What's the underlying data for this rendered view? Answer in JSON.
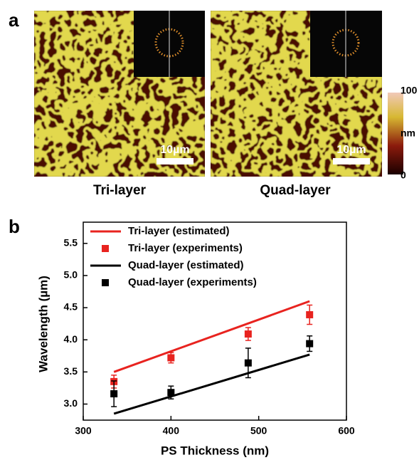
{
  "panel_a": {
    "label": "a",
    "captions": [
      "Tri-layer",
      "Quad-layer"
    ],
    "scale_bars": [
      "10µm",
      "10µm"
    ],
    "colorbar": {
      "top": "100",
      "unit": "nm",
      "bottom": "0"
    }
  },
  "chart_data": {
    "type": "line",
    "label": "b",
    "xlabel": "PS Thickness (nm)",
    "ylabel": "Wavelength (µm)",
    "xlim": [
      300,
      600
    ],
    "xticks": [
      300,
      400,
      500,
      600
    ],
    "ylim": [
      2.75,
      5.83
    ],
    "yticks": [
      {
        "value": 3,
        "label": "3.0"
      },
      3.5,
      {
        "value": 4,
        "label": "4.0"
      },
      4.5,
      {
        "value": 5,
        "label": "5.0"
      },
      5.5
    ],
    "series": [
      {
        "name": "Tri-layer (estimated)",
        "style": "line",
        "color": "#e8231f",
        "x": [
          335,
          558
        ],
        "values": [
          3.5,
          4.6
        ]
      },
      {
        "name": "Tri-layer (experiments)",
        "style": "marker",
        "color": "#e8231f",
        "x": [
          335,
          400,
          488,
          558
        ],
        "values": [
          3.35,
          3.72,
          4.09,
          4.39
        ],
        "errors": [
          0.1,
          0.08,
          0.1,
          0.15
        ]
      },
      {
        "name": "Quad-layer (estimated)",
        "style": "line",
        "color": "#000000",
        "x": [
          335,
          558
        ],
        "values": [
          2.85,
          3.77
        ]
      },
      {
        "name": "Quad-layer (experiments)",
        "style": "marker",
        "color": "#000000",
        "x": [
          335,
          400,
          488,
          558
        ],
        "values": [
          3.16,
          3.18,
          3.64,
          3.94
        ],
        "errors": [
          0.2,
          0.1,
          0.23,
          0.12
        ]
      }
    ]
  }
}
